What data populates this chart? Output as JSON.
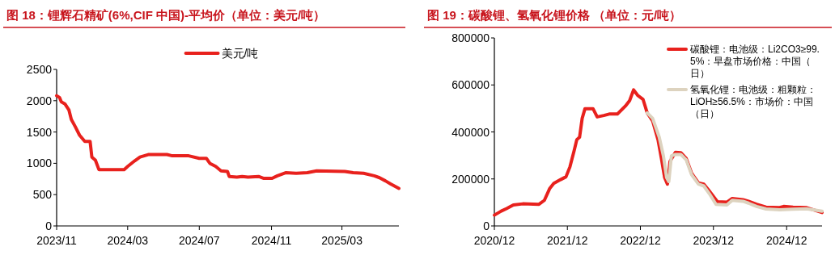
{
  "chart_data": [
    {
      "type": "line",
      "title": "图 18：锂辉石精矿(6%,CIF 中国)-平均价（单位：美元/吨）",
      "legend": "top",
      "grid": false,
      "xlim": [
        "2023-11-01",
        "2025-06-06"
      ],
      "xticks": [
        {
          "value": "2023-11-01",
          "label": "2023/11"
        },
        {
          "value": "2024-03-01",
          "label": "2024/03"
        },
        {
          "value": "2024-07-01",
          "label": "2024/07"
        },
        {
          "value": "2024-11-01",
          "label": "2024/11"
        },
        {
          "value": "2025-03-01",
          "label": "2025/03"
        }
      ],
      "ylim": [
        0,
        2500
      ],
      "yticks": [
        0,
        500,
        1000,
        1500,
        2000,
        2500
      ],
      "series": [
        {
          "name": "美元/吨",
          "color": "#e8211d",
          "x": [
            "2023-11-01",
            "2023-11-06",
            "2023-11-09",
            "2023-11-15",
            "2023-11-22",
            "2023-11-26",
            "2023-12-03",
            "2023-12-10",
            "2023-12-19",
            "2023-12-28",
            "2023-12-31",
            "2024-01-06",
            "2024-01-12",
            "2024-02-24",
            "2024-03-01",
            "2024-03-13",
            "2024-03-22",
            "2024-04-05",
            "2024-05-07",
            "2024-05-16",
            "2024-06-13",
            "2024-07-01",
            "2024-07-13",
            "2024-07-19",
            "2024-07-29",
            "2024-08-07",
            "2024-08-18",
            "2024-08-21",
            "2024-09-03",
            "2024-09-12",
            "2024-09-22",
            "2024-10-10",
            "2024-10-19",
            "2024-11-02",
            "2024-11-11",
            "2024-11-25",
            "2024-12-13",
            "2025-01-01",
            "2025-01-17",
            "2025-03-06",
            "2025-03-20",
            "2025-04-07",
            "2025-04-25",
            "2025-05-04",
            "2025-05-14",
            "2025-05-23",
            "2025-06-06"
          ],
          "values": [
            2080,
            2050,
            1980,
            1950,
            1850,
            1700,
            1580,
            1450,
            1350,
            1350,
            1100,
            1050,
            900,
            900,
            950,
            1040,
            1100,
            1140,
            1140,
            1120,
            1120,
            1080,
            1080,
            1000,
            950,
            880,
            870,
            790,
            780,
            790,
            780,
            790,
            760,
            760,
            800,
            850,
            840,
            850,
            880,
            870,
            850,
            840,
            800,
            770,
            720,
            670,
            600
          ]
        }
      ]
    },
    {
      "type": "line",
      "title": "图 19：碳酸锂、氢氧化锂价格 （单位：元/吨）",
      "legend": "top right",
      "grid": false,
      "xlim": [
        "2020-12-01",
        "2025-05-27"
      ],
      "xticks": [
        {
          "value": "2020-12-01",
          "label": "2020/12"
        },
        {
          "value": "2021-12-01",
          "label": "2021/12"
        },
        {
          "value": "2022-12-01",
          "label": "2022/12"
        },
        {
          "value": "2023-12-01",
          "label": "2023/12"
        },
        {
          "value": "2024-12-01",
          "label": "2024/12"
        }
      ],
      "ylim": [
        0,
        800000
      ],
      "yticks": [
        0,
        200000,
        400000,
        600000,
        800000
      ],
      "series": [
        {
          "name": "碳酸锂：电池级：Li2CO3≥99.5%：早盘市场价格：中国（日）",
          "color": "#e8211d",
          "x": [
            "2020-12-01",
            "2021-01-04",
            "2021-01-31",
            "2021-03-06",
            "2021-04-22",
            "2021-07-12",
            "2021-08-08",
            "2021-09-04",
            "2021-09-24",
            "2021-10-28",
            "2021-11-24",
            "2021-12-14",
            "2022-01-04",
            "2022-01-17",
            "2022-01-31",
            "2022-02-13",
            "2022-02-27",
            "2022-04-08",
            "2022-04-29",
            "2022-06-01",
            "2022-06-28",
            "2022-08-08",
            "2022-09-17",
            "2022-10-08",
            "2022-10-28",
            "2022-11-17",
            "2022-12-14",
            "2023-01-04",
            "2023-01-31",
            "2023-02-27",
            "2023-03-16",
            "2023-04-01",
            "2023-04-15",
            "2023-04-28",
            "2023-05-25",
            "2023-06-21",
            "2023-07-18",
            "2023-08-14",
            "2023-09-17",
            "2023-10-14",
            "2023-11-10",
            "2023-12-21",
            "2024-02-06",
            "2024-03-04",
            "2024-04-27",
            "2024-05-24",
            "2024-07-04",
            "2024-08-20",
            "2024-10-27",
            "2024-11-16",
            "2025-01-02",
            "2025-03-11",
            "2025-05-27"
          ],
          "values": [
            46000,
            63000,
            74000,
            89000,
            94000,
            92000,
            109000,
            160000,
            181000,
            197000,
            209000,
            252000,
            321000,
            367000,
            378000,
            458000,
            499000,
            499000,
            464000,
            470000,
            476000,
            476000,
            510000,
            533000,
            579000,
            556000,
            539000,
            481000,
            447000,
            367000,
            287000,
            206000,
            178000,
            275000,
            313000,
            312000,
            287000,
            224000,
            183000,
            178000,
            149000,
            103000,
            101000,
            117000,
            112000,
            105000,
            92000,
            80000,
            78000,
            83000,
            80000,
            78000,
            57000
          ]
        },
        {
          "name": "氢氧化锂：电池级：粗颗粒：LiOH≥56.5%：市场价：中国（日）",
          "color": "#ddd3bf",
          "x": [
            "2023-01-04",
            "2023-01-31",
            "2023-03-05",
            "2023-03-26",
            "2023-04-11",
            "2023-04-22",
            "2023-05-05",
            "2023-05-25",
            "2023-06-21",
            "2023-07-18",
            "2023-08-14",
            "2023-09-17",
            "2023-10-14",
            "2023-11-10",
            "2023-12-14",
            "2024-02-06",
            "2024-03-04",
            "2024-04-27",
            "2024-05-24",
            "2024-07-04",
            "2024-08-20",
            "2024-10-27",
            "2025-01-02",
            "2025-03-11",
            "2025-05-27"
          ],
          "values": [
            481000,
            458000,
            378000,
            298000,
            206000,
            189000,
            298000,
            304000,
            304000,
            281000,
            218000,
            178000,
            170000,
            138000,
            92000,
            89000,
            109000,
            105000,
            97000,
            83000,
            72000,
            69000,
            71000,
            73000,
            63000
          ]
        }
      ]
    }
  ]
}
